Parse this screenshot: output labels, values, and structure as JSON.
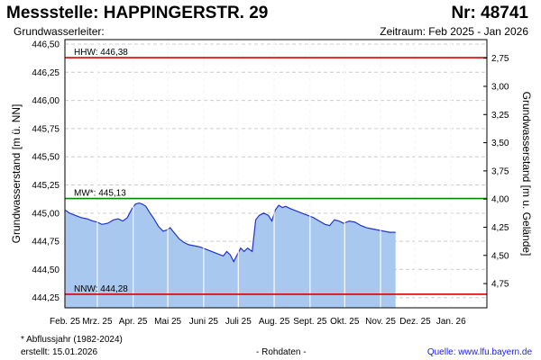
{
  "header": {
    "title": "Messstelle: HAPPINGERSTR. 29",
    "station_number": "Nr: 48741",
    "aquifer": "Grundwasserleiter:",
    "period": "Zeitraum: Feb 2025 - Jan 2026"
  },
  "footer": {
    "footnote": "* Abflussjahr (1982-2024)",
    "created": "erstellt:  15.01.2026",
    "raw_data": "- Rohdaten -",
    "source": "Quelle:  www.lfu.bayern.de"
  },
  "colors": {
    "fill": "#a8c8f0",
    "line": "#2233cc",
    "hhw": "#dd0000",
    "mw": "#008800",
    "nnw": "#dd0000"
  },
  "chart_data": {
    "type": "area",
    "ylabel": "Grundwasserstand [m ü. NN]",
    "ylabel_right": "Grundwasserstand [m u. Gelände]",
    "ylim": [
      444.16,
      446.54
    ],
    "yticks": [
      444.25,
      444.5,
      444.75,
      445.0,
      445.25,
      445.5,
      445.75,
      446.0,
      446.25,
      446.5
    ],
    "ytick_labels": [
      "444,25",
      "444,50",
      "444,75",
      "445,00",
      "445,25",
      "445,50",
      "445,75",
      "446,00",
      "446,25",
      "446,50"
    ],
    "yticks_right": [
      2.75,
      3.0,
      3.25,
      3.5,
      3.75,
      4.0,
      4.25,
      4.5,
      4.75
    ],
    "ytick_labels_right": [
      "2,75",
      "3,00",
      "3,25",
      "3,50",
      "3,75",
      "4,00",
      "4,25",
      "4,50",
      "4,75"
    ],
    "ground_level": 449.125,
    "xlim": [
      "2025-02-01",
      "2026-02-01"
    ],
    "xticks": [
      {
        "date": "2025-02-01",
        "label": "Feb. 25"
      },
      {
        "date": "2025-03-01",
        "label": "Mrz. 25"
      },
      {
        "date": "2025-04-01",
        "label": "Apr. 25"
      },
      {
        "date": "2025-05-01",
        "label": "Mai 25"
      },
      {
        "date": "2025-06-01",
        "label": "Juni 25"
      },
      {
        "date": "2025-07-01",
        "label": "Juli 25"
      },
      {
        "date": "2025-08-01",
        "label": "Aug. 25"
      },
      {
        "date": "2025-09-01",
        "label": "Sept. 25"
      },
      {
        "date": "2025-10-01",
        "label": "Okt. 25"
      },
      {
        "date": "2025-11-01",
        "label": "Nov. 25"
      },
      {
        "date": "2025-12-01",
        "label": "Dez. 25"
      },
      {
        "date": "2026-01-01",
        "label": "Jan. 26"
      }
    ],
    "grid": true,
    "reference_lines": [
      {
        "name": "HHW",
        "label": "HHW: 446,38",
        "value": 446.38,
        "color": "#dd0000"
      },
      {
        "name": "MW",
        "label": "MW*: 445,13",
        "value": 445.13,
        "color": "#008800"
      },
      {
        "name": "NNW",
        "label": "NNW: 444,28",
        "value": 444.28,
        "color": "#dd0000"
      }
    ],
    "series": [
      {
        "points": [
          [
            "2025-02-01",
            445.03
          ],
          [
            "2025-02-05",
            445.0
          ],
          [
            "2025-02-10",
            444.98
          ],
          [
            "2025-02-15",
            444.96
          ],
          [
            "2025-02-20",
            444.95
          ],
          [
            "2025-02-25",
            444.93
          ],
          [
            "2025-03-01",
            444.92
          ],
          [
            "2025-03-05",
            444.9
          ],
          [
            "2025-03-10",
            444.91
          ],
          [
            "2025-03-15",
            444.94
          ],
          [
            "2025-03-19",
            444.95
          ],
          [
            "2025-03-23",
            444.93
          ],
          [
            "2025-03-27",
            444.96
          ],
          [
            "2025-03-31",
            445.04
          ],
          [
            "2025-04-03",
            445.08
          ],
          [
            "2025-04-06",
            445.09
          ],
          [
            "2025-04-09",
            445.08
          ],
          [
            "2025-04-12",
            445.06
          ],
          [
            "2025-04-15",
            445.01
          ],
          [
            "2025-04-19",
            444.95
          ],
          [
            "2025-04-23",
            444.88
          ],
          [
            "2025-04-27",
            444.84
          ],
          [
            "2025-04-30",
            444.85
          ],
          [
            "2025-05-03",
            444.87
          ],
          [
            "2025-05-07",
            444.82
          ],
          [
            "2025-05-11",
            444.77
          ],
          [
            "2025-05-15",
            444.74
          ],
          [
            "2025-05-19",
            444.72
          ],
          [
            "2025-05-24",
            444.71
          ],
          [
            "2025-05-29",
            444.7
          ],
          [
            "2025-06-03",
            444.68
          ],
          [
            "2025-06-08",
            444.66
          ],
          [
            "2025-06-13",
            444.64
          ],
          [
            "2025-06-18",
            444.62
          ],
          [
            "2025-06-21",
            444.66
          ],
          [
            "2025-06-24",
            444.63
          ],
          [
            "2025-06-27",
            444.57
          ],
          [
            "2025-06-30",
            444.63
          ],
          [
            "2025-07-03",
            444.69
          ],
          [
            "2025-07-06",
            444.66
          ],
          [
            "2025-07-09",
            444.69
          ],
          [
            "2025-07-13",
            444.66
          ],
          [
            "2025-07-16",
            444.94
          ],
          [
            "2025-07-19",
            444.98
          ],
          [
            "2025-07-23",
            445.0
          ],
          [
            "2025-07-27",
            444.98
          ],
          [
            "2025-07-30",
            444.93
          ],
          [
            "2025-08-02",
            445.03
          ],
          [
            "2025-08-05",
            445.07
          ],
          [
            "2025-08-08",
            445.05
          ],
          [
            "2025-08-11",
            445.06
          ],
          [
            "2025-08-15",
            445.04
          ],
          [
            "2025-08-20",
            445.02
          ],
          [
            "2025-08-25",
            445.0
          ],
          [
            "2025-08-30",
            444.98
          ],
          [
            "2025-09-04",
            444.96
          ],
          [
            "2025-09-09",
            444.93
          ],
          [
            "2025-09-14",
            444.9
          ],
          [
            "2025-09-18",
            444.89
          ],
          [
            "2025-09-22",
            444.94
          ],
          [
            "2025-09-26",
            444.93
          ],
          [
            "2025-09-30",
            444.91
          ],
          [
            "2025-10-05",
            444.93
          ],
          [
            "2025-10-10",
            444.92
          ],
          [
            "2025-10-15",
            444.89
          ],
          [
            "2025-10-20",
            444.87
          ],
          [
            "2025-10-25",
            444.86
          ],
          [
            "2025-10-30",
            444.85
          ],
          [
            "2025-11-04",
            444.84
          ],
          [
            "2025-11-09",
            444.83
          ],
          [
            "2025-11-14",
            444.83
          ]
        ]
      }
    ]
  }
}
